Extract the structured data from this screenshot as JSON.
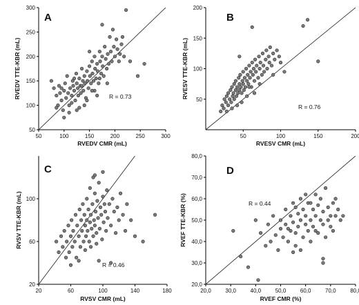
{
  "chart_data": [
    {
      "type": "scatter",
      "panel_label": "A",
      "xlabel": "RVEDV CMR (mL)",
      "ylabel": "RVEDV TTE-KBR (mL)",
      "xlim": [
        50,
        300
      ],
      "ylim": [
        50,
        300
      ],
      "xticks": [
        "50",
        "100",
        "150",
        "200",
        "250",
        "300"
      ],
      "yticks": [
        "50",
        "100",
        "150",
        "200",
        "250",
        "300"
      ],
      "annotation": "R = 0.73",
      "identity_line": true,
      "points": [
        [
          75,
          150
        ],
        [
          80,
          135
        ],
        [
          85,
          120
        ],
        [
          88,
          100
        ],
        [
          90,
          140
        ],
        [
          92,
          125
        ],
        [
          95,
          110
        ],
        [
          98,
          90
        ],
        [
          100,
          130
        ],
        [
          102,
          145
        ],
        [
          104,
          115
        ],
        [
          106,
          160
        ],
        [
          108,
          125
        ],
        [
          110,
          100
        ],
        [
          112,
          135
        ],
        [
          115,
          120
        ],
        [
          117,
          150
        ],
        [
          118,
          140
        ],
        [
          120,
          130
        ],
        [
          122,
          110
        ],
        [
          124,
          165
        ],
        [
          125,
          145
        ],
        [
          127,
          135
        ],
        [
          128,
          120
        ],
        [
          130,
          155
        ],
        [
          132,
          140
        ],
        [
          133,
          125
        ],
        [
          135,
          175
        ],
        [
          137,
          150
        ],
        [
          138,
          130
        ],
        [
          140,
          160
        ],
        [
          141,
          145
        ],
        [
          143,
          115
        ],
        [
          145,
          170
        ],
        [
          146,
          150
        ],
        [
          148,
          135
        ],
        [
          150,
          180
        ],
        [
          151,
          160
        ],
        [
          153,
          145
        ],
        [
          155,
          190
        ],
        [
          156,
          165
        ],
        [
          158,
          150
        ],
        [
          160,
          200
        ],
        [
          161,
          175
        ],
        [
          163,
          155
        ],
        [
          165,
          185
        ],
        [
          166,
          170
        ],
        [
          168,
          145
        ],
        [
          170,
          210
        ],
        [
          171,
          190
        ],
        [
          173,
          165
        ],
        [
          175,
          200
        ],
        [
          176,
          180
        ],
        [
          178,
          160
        ],
        [
          180,
          220
        ],
        [
          182,
          195
        ],
        [
          184,
          175
        ],
        [
          186,
          205
        ],
        [
          188,
          185
        ],
        [
          190,
          240
        ],
        [
          192,
          210
        ],
        [
          194,
          190
        ],
        [
          196,
          255
        ],
        [
          198,
          220
        ],
        [
          200,
          200
        ],
        [
          203,
          235
        ],
        [
          205,
          215
        ],
        [
          208,
          190
        ],
        [
          210,
          205
        ],
        [
          213,
          225
        ],
        [
          215,
          240
        ],
        [
          218,
          200
        ],
        [
          222,
          295
        ],
        [
          230,
          190
        ],
        [
          245,
          160
        ],
        [
          258,
          185
        ],
        [
          175,
          265
        ],
        [
          145,
          110
        ],
        [
          130,
          95
        ],
        [
          115,
          105
        ],
        [
          160,
          130
        ],
        [
          140,
          100
        ],
        [
          120,
          155
        ],
        [
          135,
          140
        ],
        [
          155,
          130
        ],
        [
          165,
          120
        ],
        [
          125,
          90
        ],
        [
          110,
          85
        ],
        [
          185,
          145
        ],
        [
          150,
          210
        ],
        [
          100,
          75
        ],
        [
          95,
          135
        ],
        [
          85,
          95
        ],
        [
          170,
          155
        ]
      ]
    },
    {
      "type": "scatter",
      "panel_label": "B",
      "xlabel": "RVESV CMR (mL)",
      "ylabel": "RVESV TTE-KBR (mL)",
      "xlim": [
        0,
        200
      ],
      "ylim": [
        0,
        200
      ],
      "xticks": [
        "50",
        "100",
        "150",
        "200"
      ],
      "yticks": [
        "50",
        "100",
        "150",
        "200"
      ],
      "annotation": "R = 0.76",
      "identity_line": true,
      "points": [
        [
          20,
          30
        ],
        [
          22,
          40
        ],
        [
          24,
          35
        ],
        [
          25,
          50
        ],
        [
          27,
          45
        ],
        [
          28,
          55
        ],
        [
          30,
          40
        ],
        [
          30,
          60
        ],
        [
          32,
          50
        ],
        [
          33,
          65
        ],
        [
          34,
          45
        ],
        [
          35,
          70
        ],
        [
          36,
          55
        ],
        [
          37,
          60
        ],
        [
          38,
          75
        ],
        [
          38,
          50
        ],
        [
          40,
          65
        ],
        [
          40,
          80
        ],
        [
          41,
          55
        ],
        [
          42,
          70
        ],
        [
          43,
          60
        ],
        [
          44,
          85
        ],
        [
          45,
          75
        ],
        [
          45,
          65
        ],
        [
          46,
          90
        ],
        [
          47,
          70
        ],
        [
          48,
          60
        ],
        [
          49,
          80
        ],
        [
          50,
          95
        ],
        [
          50,
          75
        ],
        [
          51,
          65
        ],
        [
          52,
          85
        ],
        [
          53,
          70
        ],
        [
          54,
          100
        ],
        [
          55,
          80
        ],
        [
          56,
          90
        ],
        [
          57,
          75
        ],
        [
          58,
          105
        ],
        [
          59,
          85
        ],
        [
          60,
          95
        ],
        [
          61,
          70
        ],
        [
          62,
          110
        ],
        [
          63,
          90
        ],
        [
          64,
          100
        ],
        [
          65,
          80
        ],
        [
          66,
          115
        ],
        [
          67,
          95
        ],
        [
          68,
          105
        ],
        [
          70,
          85
        ],
        [
          71,
          120
        ],
        [
          72,
          100
        ],
        [
          73,
          110
        ],
        [
          75,
          90
        ],
        [
          76,
          125
        ],
        [
          77,
          105
        ],
        [
          78,
          95
        ],
        [
          80,
          115
        ],
        [
          81,
          130
        ],
        [
          82,
          100
        ],
        [
          84,
          120
        ],
        [
          85,
          110
        ],
        [
          86,
          135
        ],
        [
          88,
          105
        ],
        [
          90,
          125
        ],
        [
          92,
          115
        ],
        [
          95,
          130
        ],
        [
          98,
          120
        ],
        [
          100,
          110
        ],
        [
          62,
          168
        ],
        [
          130,
          170
        ],
        [
          136,
          180
        ],
        [
          150,
          112
        ],
        [
          45,
          120
        ],
        [
          55,
          55
        ],
        [
          35,
          35
        ],
        [
          28,
          30
        ],
        [
          48,
          45
        ],
        [
          65,
          60
        ],
        [
          72,
          75
        ],
        [
          58,
          70
        ],
        [
          42,
          40
        ],
        [
          90,
          90
        ],
        [
          105,
          95
        ]
      ]
    },
    {
      "type": "scatter",
      "panel_label": "C",
      "xlabel": "RVSV CMR (mL)",
      "ylabel": "RVSV TTE-KBR (mL)",
      "xlim": [
        20,
        180
      ],
      "ylim": [
        20,
        140
      ],
      "xticks": [
        "20",
        "60",
        "100",
        "140",
        "180"
      ],
      "yticks": [
        "20",
        "60",
        "100"
      ],
      "annotation": "R = 0.46",
      "identity_line": true,
      "points": [
        [
          42,
          60
        ],
        [
          45,
          50
        ],
        [
          48,
          65
        ],
        [
          50,
          55
        ],
        [
          52,
          70
        ],
        [
          54,
          45
        ],
        [
          55,
          60
        ],
        [
          57,
          75
        ],
        [
          58,
          50
        ],
        [
          60,
          65
        ],
        [
          61,
          80
        ],
        [
          62,
          55
        ],
        [
          63,
          70
        ],
        [
          65,
          60
        ],
        [
          66,
          85
        ],
        [
          67,
          45
        ],
        [
          68,
          75
        ],
        [
          70,
          65
        ],
        [
          71,
          90
        ],
        [
          72,
          55
        ],
        [
          73,
          80
        ],
        [
          74,
          70
        ],
        [
          75,
          95
        ],
        [
          76,
          60
        ],
        [
          77,
          85
        ],
        [
          78,
          75
        ],
        [
          79,
          65
        ],
        [
          80,
          100
        ],
        [
          80,
          80
        ],
        [
          81,
          70
        ],
        [
          82,
          90
        ],
        [
          83,
          60
        ],
        [
          84,
          110
        ],
        [
          84,
          78
        ],
        [
          85,
          85
        ],
        [
          86,
          72
        ],
        [
          87,
          95
        ],
        [
          88,
          65
        ],
        [
          88,
          120
        ],
        [
          89,
          80
        ],
        [
          90,
          105
        ],
        [
          90,
          75
        ],
        [
          91,
          88
        ],
        [
          92,
          68
        ],
        [
          93,
          98
        ],
        [
          94,
          82
        ],
        [
          95,
          115
        ],
        [
          96,
          72
        ],
        [
          97,
          92
        ],
        [
          98,
          85
        ],
        [
          99,
          62
        ],
        [
          100,
          102
        ],
        [
          101,
          78
        ],
        [
          102,
          95
        ],
        [
          103,
          88
        ],
        [
          104,
          70
        ],
        [
          105,
          108
        ],
        [
          106,
          82
        ],
        [
          108,
          95
        ],
        [
          110,
          75
        ],
        [
          112,
          100
        ],
        [
          114,
          88
        ],
        [
          116,
          68
        ],
        [
          118,
          92
        ],
        [
          120,
          80
        ],
        [
          122,
          105
        ],
        [
          125,
          85
        ],
        [
          128,
          70
        ],
        [
          130,
          95
        ],
        [
          135,
          80
        ],
        [
          140,
          65
        ],
        [
          150,
          60
        ],
        [
          165,
          85
        ],
        [
          95,
          42
        ],
        [
          110,
          40
        ],
        [
          70,
          42
        ],
        [
          60,
          38
        ],
        [
          100,
          125
        ],
        [
          90,
          122
        ],
        [
          85,
          55
        ],
        [
          78,
          52
        ],
        [
          92,
          58
        ]
      ]
    },
    {
      "type": "scatter",
      "panel_label": "D",
      "xlabel": "RVEF CMR (%)",
      "ylabel": "RVEF TTE-KBR (%)",
      "xlim": [
        20,
        80
      ],
      "ylim": [
        20,
        80
      ],
      "xticks": [
        "20,0",
        "30,0",
        "40,0",
        "50,0",
        "60,0",
        "70,0",
        "80,0"
      ],
      "yticks": [
        "20,0",
        "30,0",
        "40,0",
        "50,0",
        "60,0",
        "70,0",
        "80,0"
      ],
      "annotation": "R = 0.44",
      "identity_line": true,
      "points": [
        [
          31,
          45
        ],
        [
          34,
          33
        ],
        [
          37,
          28
        ],
        [
          40,
          50
        ],
        [
          41,
          22
        ],
        [
          42,
          44
        ],
        [
          44,
          38
        ],
        [
          45,
          48
        ],
        [
          46,
          40
        ],
        [
          47,
          52
        ],
        [
          48,
          43
        ],
        [
          49,
          36
        ],
        [
          50,
          50
        ],
        [
          50,
          46
        ],
        [
          51,
          42
        ],
        [
          52,
          55
        ],
        [
          52,
          48
        ],
        [
          53,
          40
        ],
        [
          54,
          52
        ],
        [
          54,
          45
        ],
        [
          55,
          58
        ],
        [
          55,
          49
        ],
        [
          56,
          44
        ],
        [
          56,
          38
        ],
        [
          57,
          53
        ],
        [
          57,
          47
        ],
        [
          58,
          60
        ],
        [
          58,
          50
        ],
        [
          59,
          42
        ],
        [
          59,
          55
        ],
        [
          60,
          48
        ],
        [
          60,
          52
        ],
        [
          61,
          45
        ],
        [
          61,
          58
        ],
        [
          62,
          50
        ],
        [
          62,
          40
        ],
        [
          63,
          55
        ],
        [
          63,
          47
        ],
        [
          64,
          62
        ],
        [
          64,
          52
        ],
        [
          65,
          44
        ],
        [
          65,
          57
        ],
        [
          66,
          50
        ],
        [
          66,
          60
        ],
        [
          67,
          48
        ],
        [
          67,
          54
        ],
        [
          68,
          65
        ],
        [
          68,
          42
        ],
        [
          69,
          56
        ],
        [
          69,
          50
        ],
        [
          70,
          52
        ],
        [
          70,
          47
        ],
        [
          71,
          58
        ],
        [
          71,
          45
        ],
        [
          72,
          60
        ],
        [
          72,
          52
        ],
        [
          73,
          55
        ],
        [
          74,
          50
        ],
        [
          75,
          52
        ],
        [
          67,
          30
        ],
        [
          67,
          32
        ],
        [
          55,
          35
        ],
        [
          58,
          36
        ],
        [
          62,
          58
        ],
        [
          60,
          62
        ],
        [
          64,
          45
        ],
        [
          56,
          56
        ],
        [
          53,
          46
        ]
      ]
    }
  ]
}
